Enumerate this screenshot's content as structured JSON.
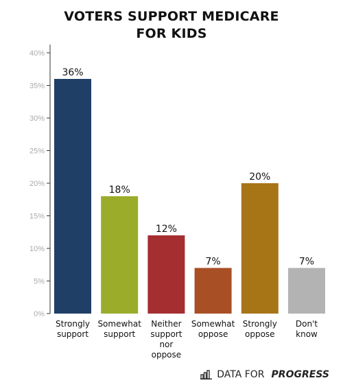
{
  "chart_data": {
    "type": "bar",
    "title_lines": [
      "VOTERS SUPPORT MEDICARE",
      "FOR KIDS"
    ],
    "categories": [
      [
        "Strongly",
        "support"
      ],
      [
        "Somewhat",
        "support"
      ],
      [
        "Neither",
        "support",
        "nor",
        "oppose"
      ],
      [
        "Somewhat",
        "oppose"
      ],
      [
        "Strongly",
        "oppose"
      ],
      [
        "Don't",
        "know"
      ]
    ],
    "values": [
      36,
      18,
      12,
      7,
      20,
      7
    ],
    "data_labels": [
      "36%",
      "18%",
      "12%",
      "7%",
      "20%",
      "7%"
    ],
    "colors": [
      "#1f3f66",
      "#9aac2a",
      "#a52e31",
      "#a84f25",
      "#a87516",
      "#b3b3b3"
    ],
    "ylim": [
      0,
      40
    ],
    "yticks": [
      0,
      5,
      10,
      15,
      20,
      25,
      30,
      35,
      40
    ],
    "ytick_labels": [
      "0%",
      "5%",
      "10%",
      "15%",
      "20%",
      "25%",
      "30%",
      "35%",
      "40%"
    ],
    "grid": false
  },
  "brand": {
    "part1": "DATA FOR",
    "part2": "PROGRESS",
    "icon": "bar-chart-logo-icon"
  }
}
